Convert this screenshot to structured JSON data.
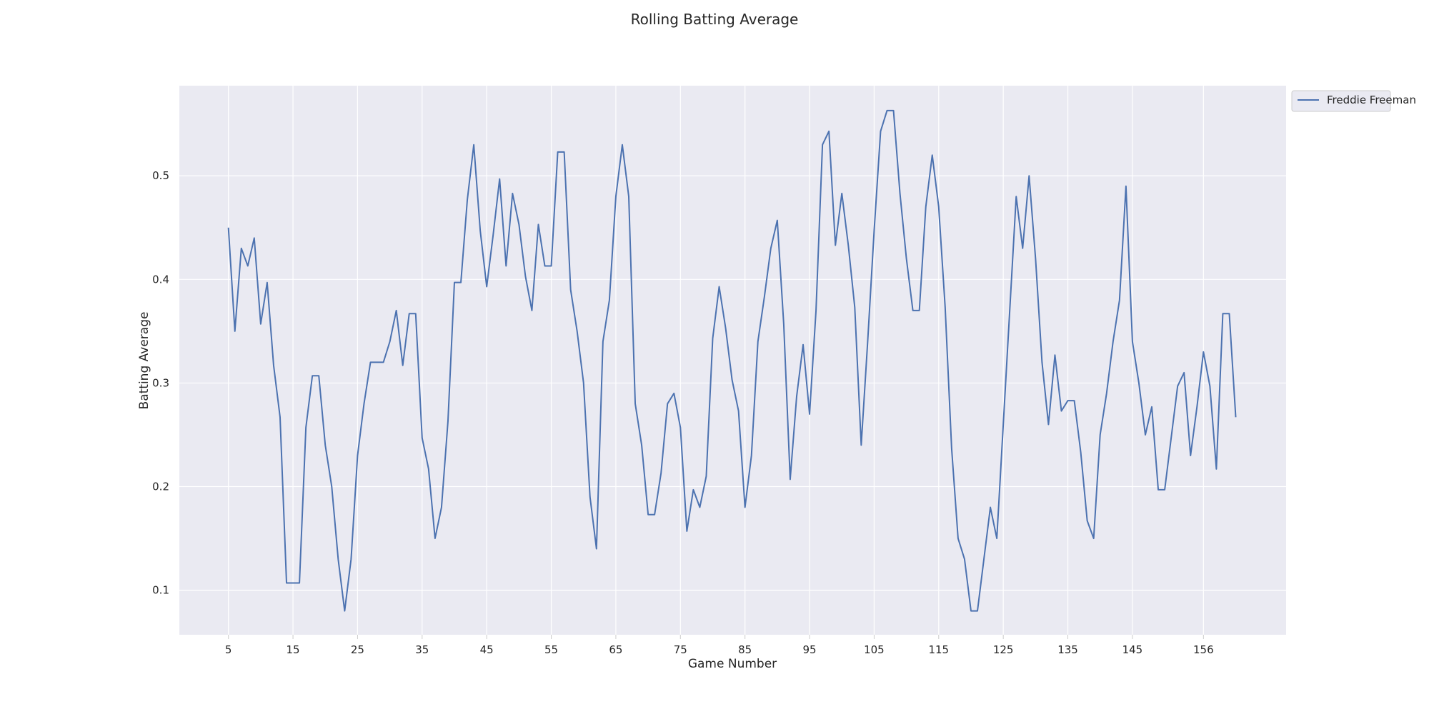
{
  "chart_data": {
    "type": "line",
    "title": "Rolling Batting Average",
    "xlabel": "Game Number",
    "ylabel": "Batting Average",
    "xlim": [
      -2.6,
      168.8
    ],
    "ylim": [
      0.057,
      0.587
    ],
    "x_ticks": [
      5,
      15,
      25,
      35,
      45,
      55,
      65,
      75,
      85,
      95,
      105,
      115,
      125,
      135,
      145,
      156
    ],
    "x_tick_labels": [
      "5",
      "15",
      "25",
      "35",
      "45",
      "55",
      "65",
      "75",
      "85",
      "95",
      "105",
      "115",
      "125",
      "135",
      "145",
      "156"
    ],
    "y_ticks": [
      0.1,
      0.2,
      0.3,
      0.4,
      0.5
    ],
    "y_tick_labels": [
      "0.1",
      "0.2",
      "0.3",
      "0.4",
      "0.5"
    ],
    "grid": true,
    "legend_position": "outside-top-right",
    "background_color": "#eaeaf2",
    "grid_color": "#ffffff",
    "series": [
      {
        "name": "Freddie Freeman",
        "color": "#4c72b0",
        "x": [
          5,
          6,
          7,
          8,
          9,
          10,
          11,
          12,
          13,
          14,
          15,
          16,
          17,
          18,
          19,
          20,
          21,
          22,
          23,
          24,
          25,
          26,
          27,
          28,
          29,
          30,
          31,
          32,
          33,
          34,
          35,
          36,
          37,
          38,
          39,
          40,
          41,
          42,
          43,
          44,
          45,
          46,
          47,
          48,
          49,
          50,
          51,
          52,
          53,
          54,
          55,
          56,
          57,
          58,
          59,
          60,
          61,
          62,
          63,
          64,
          65,
          66,
          67,
          68,
          69,
          70,
          71,
          72,
          73,
          74,
          75,
          76,
          77,
          78,
          79,
          80,
          81,
          82,
          83,
          84,
          85,
          86,
          87,
          88,
          89,
          90,
          91,
          92,
          93,
          94,
          95,
          96,
          97,
          98,
          99,
          100,
          101,
          102,
          103,
          104,
          105,
          106,
          107,
          108,
          109,
          110,
          111,
          112,
          113,
          114,
          115,
          116,
          117,
          118,
          119,
          120,
          121,
          122,
          123,
          124,
          125,
          126,
          127,
          128,
          129,
          130,
          131,
          132,
          133,
          134,
          135,
          136,
          137,
          138,
          139,
          140,
          141,
          142,
          143,
          144,
          145,
          146,
          147,
          148,
          149,
          150,
          151,
          152,
          153,
          154,
          155,
          156,
          157,
          158,
          159,
          160,
          161
        ],
        "values": [
          0.45,
          0.35,
          0.43,
          0.413,
          0.44,
          0.357,
          0.397,
          0.317,
          0.267,
          0.107,
          0.107,
          0.107,
          0.257,
          0.307,
          0.307,
          0.24,
          0.2,
          0.13,
          0.08,
          0.13,
          0.23,
          0.28,
          0.32,
          0.32,
          0.32,
          0.34,
          0.37,
          0.317,
          0.367,
          0.367,
          0.247,
          0.217,
          0.15,
          0.18,
          0.263,
          0.397,
          0.397,
          0.477,
          0.53,
          0.447,
          0.393,
          0.443,
          0.497,
          0.413,
          0.483,
          0.453,
          0.403,
          0.37,
          0.453,
          0.413,
          0.413,
          0.523,
          0.523,
          0.39,
          0.35,
          0.3,
          0.19,
          0.14,
          0.34,
          0.38,
          0.48,
          0.53,
          0.48,
          0.28,
          0.24,
          0.173,
          0.173,
          0.213,
          0.28,
          0.29,
          0.257,
          0.157,
          0.197,
          0.18,
          0.21,
          0.343,
          0.393,
          0.353,
          0.303,
          0.273,
          0.18,
          0.23,
          0.34,
          0.383,
          0.43,
          0.457,
          0.357,
          0.207,
          0.287,
          0.337,
          0.27,
          0.37,
          0.53,
          0.543,
          0.433,
          0.483,
          0.433,
          0.373,
          0.24,
          0.34,
          0.447,
          0.543,
          0.563,
          0.563,
          0.483,
          0.42,
          0.37,
          0.37,
          0.47,
          0.52,
          0.47,
          0.373,
          0.237,
          0.15,
          0.13,
          0.08,
          0.08,
          0.13,
          0.18,
          0.15,
          0.26,
          0.37,
          0.48,
          0.43,
          0.5,
          0.42,
          0.32,
          0.26,
          0.327,
          0.273,
          0.283,
          0.283,
          0.233,
          0.167,
          0.15,
          0.25,
          0.29,
          0.34,
          0.38,
          0.49,
          0.34,
          0.3,
          0.25,
          0.277,
          0.197,
          0.197,
          0.247,
          0.297,
          0.31,
          0.23,
          0.277,
          0.33,
          0.297,
          0.217,
          0.367,
          0.367,
          0.267
        ]
      }
    ]
  }
}
